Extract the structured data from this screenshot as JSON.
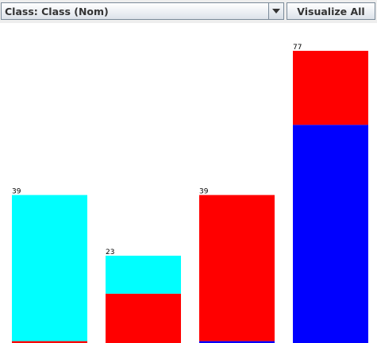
{
  "toolbar": {
    "class_select_value": "Class: Class (Nom)",
    "visualize_all_label": "Visualize All",
    "dropdown_icon": "triangle-down-icon"
  },
  "chart_data": {
    "type": "bar",
    "stacked": true,
    "ylim": [
      0,
      77
    ],
    "categories": [
      "",
      "",
      "",
      ""
    ],
    "totals": [
      39,
      23,
      39,
      77
    ],
    "total_labels": [
      "39",
      "23",
      "39",
      "77"
    ],
    "series": [
      {
        "color": "#0000ff",
        "values": [
          0,
          0,
          0.5,
          57.5
        ]
      },
      {
        "color": "#ff0000",
        "values": [
          0.5,
          13,
          38.5,
          19.5
        ]
      },
      {
        "color": "#00ffff",
        "values": [
          38.5,
          10,
          0,
          0
        ]
      }
    ]
  }
}
